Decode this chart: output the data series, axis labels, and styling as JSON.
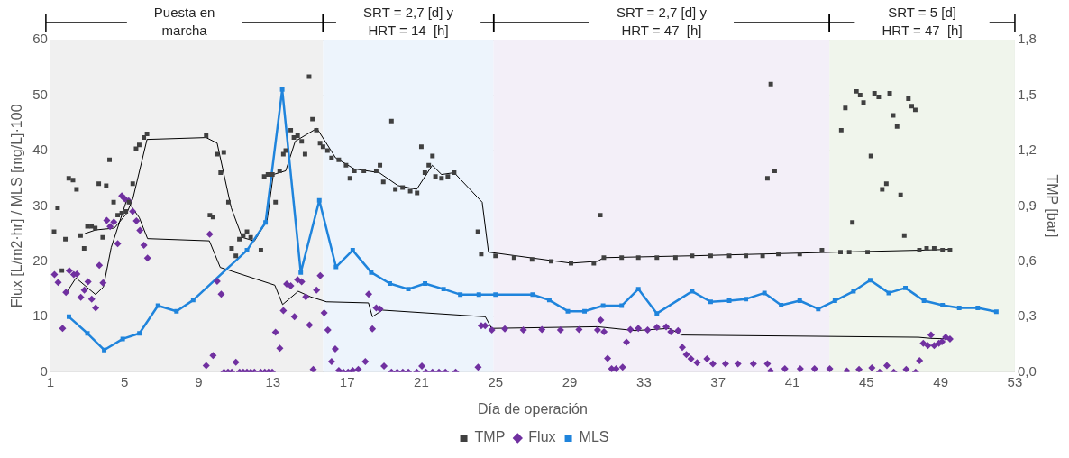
{
  "chart_data": {
    "type": "scatter",
    "xlabel": "Día de operación",
    "ylabel": "Flux [L/m2·hr] / MLS [mg/L]·100",
    "y2label": "TMP [bar]",
    "xlim": [
      1,
      53
    ],
    "xticks": [
      1,
      5,
      9,
      13,
      17,
      21,
      25,
      29,
      33,
      37,
      41,
      45,
      49,
      53
    ],
    "ylim": [
      0,
      60
    ],
    "yticks": [
      0,
      10,
      20,
      30,
      40,
      50,
      60
    ],
    "y2lim": [
      0,
      1.8
    ],
    "y2ticks": [
      {
        "value": 0,
        "label": "0,0"
      },
      {
        "value": 0.3,
        "label": "0,3"
      },
      {
        "value": 0.6,
        "label": "0,6"
      },
      {
        "value": 0.9,
        "label": "0,9"
      },
      {
        "value": 1.2,
        "label": "1,2"
      },
      {
        "value": 1.5,
        "label": "1,5"
      },
      {
        "value": 1.8,
        "label": "1,8"
      }
    ],
    "grid": true,
    "legend": "bottom",
    "bands": [
      {
        "axis": "x",
        "from": 1,
        "to": 15.7,
        "label": "Puesta en\nmarcha",
        "color": "#f0f0f0"
      },
      {
        "axis": "x",
        "from": 15.7,
        "to": 24.9,
        "label": "SRT = 2,7 [d] y\nHRT = 14  [h]",
        "color": "#edf4fc"
      },
      {
        "axis": "x",
        "from": 24.9,
        "to": 43,
        "label": "SRT = 2,7 [d] y\nHRT = 47  [h]",
        "color": "#f3eff8"
      },
      {
        "axis": "x",
        "from": 43,
        "to": 53,
        "label": "SRT = 5 [d]\nHRT = 47  [h]",
        "color": "#f0f5ec"
      }
    ],
    "series": [
      {
        "name": "TMP",
        "axis": "y2",
        "marker": "square",
        "color": "#404040",
        "x": [
          1.2,
          1.39,
          1.62,
          1.81,
          1.99,
          2.22,
          2.41,
          2.63,
          2.82,
          3.0,
          3.22,
          3.42,
          3.61,
          3.82,
          4.01,
          4.19,
          4.41,
          4.63,
          4.85,
          5.07,
          5.24,
          5.44,
          5.62,
          5.79,
          6.04,
          6.21,
          9.4,
          9.6,
          9.77,
          9.99,
          10.18,
          10.35,
          10.6,
          10.77,
          11.0,
          11.19,
          11.4,
          11.6,
          11.8,
          12.35,
          12.53,
          12.73,
          12.97,
          13.14,
          13.36,
          13.56,
          13.69,
          13.96,
          14.13,
          14.33,
          14.55,
          14.73,
          14.95,
          15.13,
          15.34,
          15.54,
          15.7,
          15.94,
          16.16,
          16.55,
          16.94,
          17.15,
          17.39,
          17.9,
          18.57,
          18.77,
          18.95,
          19.39,
          19.6,
          19.99,
          20.4,
          20.77,
          21.0,
          21.19,
          21.4,
          21.6,
          21.76,
          22.09,
          22.43,
          22.77,
          24.05,
          24.23,
          25.0,
          26.0,
          26.97,
          28.0,
          29.07,
          30.3,
          30.65,
          30.84,
          31.8,
          32.7,
          33.7,
          34.7,
          35.6,
          36.6,
          37.6,
          38.5,
          39.4,
          39.66,
          39.84,
          40.05,
          40.25,
          41.4,
          42.6,
          43.6,
          43.64,
          43.86,
          44.07,
          44.24,
          44.46,
          44.66,
          44.84,
          45.06,
          45.24,
          45.43,
          45.66,
          45.85,
          46.07,
          46.25,
          46.44,
          46.65,
          46.84,
          47.04,
          47.26,
          47.44,
          47.63,
          47.85,
          48.24,
          48.65,
          49.1,
          49.5
        ],
        "values": [
          0.76,
          0.89,
          0.55,
          0.72,
          1.05,
          1.04,
          0.99,
          0.74,
          0.67,
          0.79,
          0.79,
          0.78,
          1.02,
          0.73,
          1.01,
          1.15,
          0.92,
          0.85,
          0.86,
          0.87,
          0.92,
          1.02,
          1.21,
          1.23,
          1.27,
          1.29,
          1.28,
          0.85,
          0.84,
          1.18,
          1.08,
          1.19,
          0.92,
          0.67,
          0.63,
          0.72,
          0.74,
          0.76,
          0.73,
          0.66,
          1.06,
          1.07,
          1.07,
          0.92,
          1.09,
          1.18,
          1.2,
          1.31,
          1.27,
          1.28,
          1.25,
          1.18,
          1.6,
          1.37,
          1.31,
          1.24,
          1.22,
          1.2,
          1.16,
          1.15,
          1.12,
          1.05,
          1.09,
          1.09,
          1.09,
          1.12,
          1.03,
          1.36,
          0.99,
          1.0,
          0.98,
          0.97,
          1.22,
          1.08,
          1.12,
          1.17,
          1.06,
          1.05,
          1.06,
          1.08,
          0.76,
          0.64,
          0.63,
          0.62,
          0.61,
          0.6,
          0.59,
          0.59,
          0.85,
          0.62,
          0.62,
          0.62,
          0.62,
          0.62,
          0.63,
          0.63,
          0.63,
          0.63,
          0.63,
          1.05,
          1.56,
          1.09,
          0.64,
          0.64,
          0.66,
          0.65,
          1.31,
          1.43,
          0.65,
          0.81,
          1.52,
          1.5,
          1.46,
          0.65,
          1.17,
          1.51,
          1.49,
          0.99,
          1.02,
          1.51,
          1.39,
          1.33,
          0.96,
          0.74,
          1.48,
          1.44,
          1.42,
          0.66,
          0.67,
          0.67,
          0.66,
          0.66
        ]
      },
      {
        "name": "Flux",
        "marker": "diamond",
        "color": "#7030a0",
        "x": [
          1.22,
          1.42,
          1.66,
          1.84,
          2.02,
          2.26,
          2.43,
          2.64,
          2.83,
          3.03,
          3.23,
          3.44,
          3.64,
          3.84,
          4.04,
          4.22,
          4.42,
          4.63,
          4.85,
          5.01,
          5.22,
          5.44,
          5.64,
          5.83,
          6.04,
          6.24,
          9.4,
          9.59,
          9.77,
          9.99,
          10.21,
          10.36,
          10.58,
          10.78,
          11.0,
          11.2,
          11.4,
          11.6,
          11.8,
          12.0,
          12.34,
          12.56,
          12.76,
          12.96,
          13.14,
          13.37,
          13.56,
          13.74,
          13.96,
          14.16,
          14.33,
          14.55,
          14.77,
          14.97,
          15.17,
          15.35,
          15.55,
          15.76,
          15.96,
          16.16,
          16.36,
          16.55,
          16.8,
          17.05,
          17.3,
          17.6,
          17.98,
          18.16,
          18.36,
          18.57,
          18.77,
          18.99,
          19.39,
          19.7,
          20.0,
          20.3,
          20.75,
          21.03,
          21.25,
          21.6,
          21.95,
          22.3,
          22.85,
          24.06,
          24.23,
          24.44,
          24.8,
          25.5,
          26.5,
          27.5,
          28.5,
          29.5,
          30.5,
          30.67,
          30.85,
          31.04,
          31.26,
          31.5,
          31.85,
          32.06,
          32.27,
          32.7,
          33.2,
          33.7,
          34.2,
          34.45,
          34.84,
          35.07,
          35.29,
          35.54,
          35.87,
          36.4,
          36.72,
          37.4,
          38.07,
          38.9,
          39.66,
          39.83,
          40.6,
          41.43,
          42.2,
          43.02,
          43.94,
          44.6,
          45.29,
          45.71,
          46.1,
          46.47,
          47.14,
          47.65,
          47.86,
          48.06,
          48.31,
          48.48,
          48.65,
          48.9,
          49.07,
          49.27,
          49.5
        ],
        "values": [
          17.6,
          16.2,
          7.9,
          14.4,
          18.3,
          17.6,
          17.7,
          13.5,
          14.8,
          16.3,
          13.2,
          11.6,
          19.3,
          16.1,
          27.4,
          26.3,
          27.1,
          23.2,
          31.8,
          31.3,
          30.9,
          29.0,
          27.3,
          25.6,
          22.9,
          20.6,
          1.2,
          24.9,
          3.0,
          16.4,
          14.1,
          0,
          0,
          0,
          1.8,
          0,
          0,
          0,
          0,
          0,
          0,
          0,
          0,
          0,
          7.2,
          4.3,
          11.1,
          15.9,
          15.6,
          10.0,
          16.7,
          16.3,
          13.6,
          8.5,
          0.5,
          14.8,
          17.4,
          10.7,
          7.6,
          1.9,
          4.2,
          0.3,
          0,
          0,
          0.3,
          0.5,
          1.9,
          14.1,
          7.8,
          11.6,
          11.4,
          1.1,
          0,
          0,
          0,
          0,
          0,
          1.1,
          0,
          0,
          0,
          0,
          0,
          0.9,
          8.4,
          8.4,
          7.6,
          7.8,
          7.6,
          7.7,
          7.6,
          7.7,
          7.6,
          9.4,
          7.3,
          2.5,
          0.6,
          0.6,
          0.9,
          5.4,
          7.7,
          7.9,
          7.6,
          8.1,
          8.2,
          7.3,
          7.5,
          4.5,
          3.2,
          2.4,
          1.7,
          2.4,
          1.5,
          1.5,
          1.5,
          1.5,
          1.5,
          0.2,
          0.6,
          0.6,
          0.6,
          0.6,
          0.2,
          0.5,
          0.8,
          0,
          1.2,
          0,
          0.5,
          0,
          2.1,
          5.2,
          4.8,
          6.7,
          4.8,
          5.2,
          5.5,
          6.3,
          6.0
        ]
      },
      {
        "name": "MLS",
        "type": "line",
        "marker": "square",
        "color": "#1f84dc",
        "x": [
          2,
          3,
          3.9,
          4.9,
          5.8,
          6.8,
          7.8,
          8.7,
          11.6,
          12.6,
          13.5,
          14.5,
          15.5,
          16.4,
          17.3,
          18.3,
          19.3,
          20.3,
          21.2,
          22.2,
          23.1,
          24.1,
          25,
          27,
          27.9,
          28.9,
          29.8,
          30.8,
          31.8,
          32.7,
          33.7,
          35.6,
          36.6,
          37.6,
          38.5,
          39.5,
          40.4,
          41.4,
          42.4,
          43.3,
          44.3,
          45.2,
          46.2,
          47.1,
          48.1,
          49.1,
          50,
          51,
          52
        ],
        "values": [
          10,
          7,
          4,
          6,
          7,
          12,
          11,
          13,
          22,
          27,
          51,
          18,
          31,
          19,
          22,
          18,
          16,
          15,
          16,
          15,
          14,
          14,
          14,
          14,
          13,
          11,
          11,
          12,
          12,
          15,
          10.6,
          14.6,
          12.7,
          12.9,
          13.2,
          14.3,
          12.1,
          12.9,
          11.4,
          12.9,
          14.6,
          16.6,
          14.3,
          15.2,
          12.9,
          12.1,
          11.6,
          11.6,
          10.9
        ]
      },
      {
        "type": "line",
        "axis": "y2",
        "marker": "none",
        "color": "#000000",
        "x": [
          2.85,
          3.44,
          4.45,
          5.12,
          5.45,
          6.21,
          9.4,
          9.99,
          10.75,
          11.34,
          12.0,
          12.68,
          13.02,
          13.69,
          14.2,
          15.37,
          16.38,
          17.39,
          18.73,
          19.74,
          20.75,
          21.59,
          22.09,
          22.77,
          24.28,
          24.62,
          29.07,
          30.5,
          30.84,
          35.6,
          43.5,
          47.8,
          49.5
        ],
        "values": [
          0.75,
          0.77,
          0.78,
          0.86,
          0.94,
          1.26,
          1.27,
          1.24,
          0.89,
          0.73,
          0.71,
          0.82,
          1.07,
          1.09,
          1.25,
          1.32,
          1.16,
          1.1,
          1.08,
          1.01,
          0.99,
          1.12,
          1.07,
          1.08,
          0.92,
          0.65,
          0.59,
          0.6,
          0.62,
          0.63,
          0.65,
          0.66,
          0.665
        ]
      },
      {
        "type": "line",
        "marker": "none",
        "color": "#000000",
        "x": [
          1.84,
          2.38,
          3.44,
          3.86,
          4.28,
          5.12,
          5.79,
          6.24,
          9.57,
          10.16,
          13.1,
          13.52,
          14.36,
          15.03,
          15.88,
          18.15,
          18.36,
          18.9,
          24.45,
          24.79,
          30.5,
          32.52,
          34.37,
          35.04,
          47.8,
          48.48,
          49.5
        ],
        "values": [
          14.2,
          17.0,
          14.0,
          15.4,
          22.5,
          31.1,
          27.9,
          24.1,
          23.7,
          18.9,
          15.7,
          12.2,
          14.6,
          13.6,
          12.7,
          12.5,
          10.0,
          11.2,
          10.0,
          7.9,
          8.2,
          7.5,
          7.9,
          6.7,
          6.3,
          6.1,
          6.0
        ]
      }
    ]
  }
}
